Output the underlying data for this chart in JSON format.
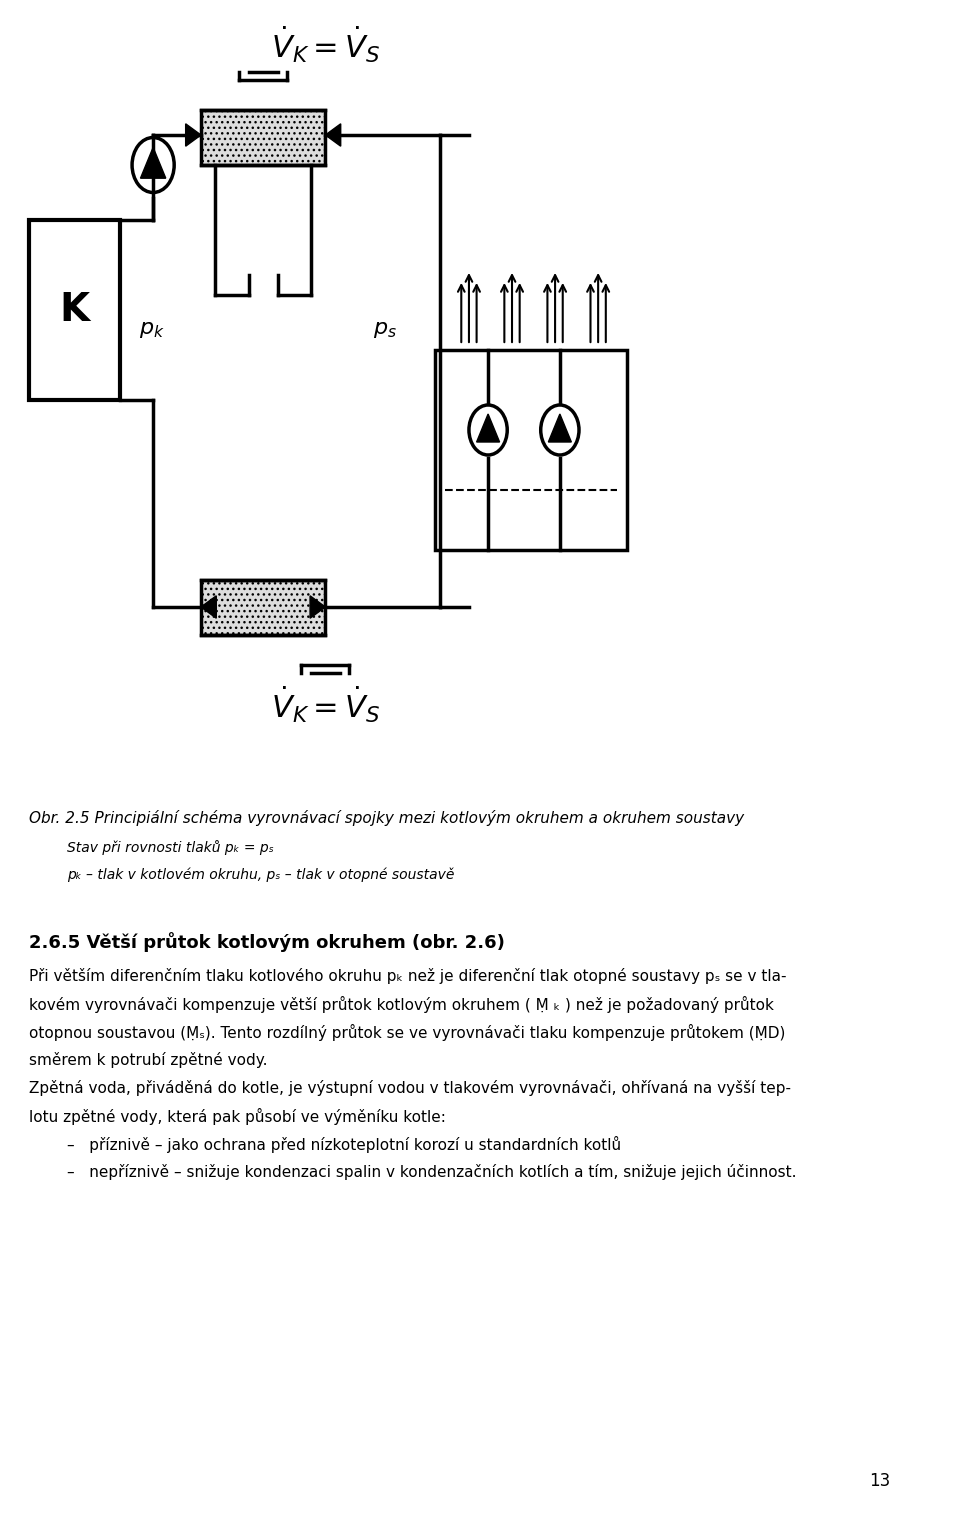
{
  "bg_color": "#ffffff",
  "page_number": "13",
  "caption_title": "Obr. 2.5 Principiální schéma vyrovnávací spojky mezi kotlovým okruhem a okruhem soustavy",
  "caption_line1": "Stav při rovnosti tlaků pₖ = pₛ",
  "caption_line2": "pₖ – tlak v kotlovém okruhu, pₛ – tlak v otopné soustavě",
  "section_title": "2.6.5 Větší průtok kotlovým okruhem (obr. 2.6)",
  "body_text": [
    "Při větším diferenčním tlaku kotlového okruhu pₖ než je diferenční tlak otopné soustavy pₛ se v tla-",
    "kovém vyrovnávači kompenzuje větší průtok kotlovým okruhem ( Ṃ ₖ ) než je požadovaný průtok",
    "otopnou soustavou (Ṃₛ). Tento rozdílný průtok se ve vyrovnávači tlaku kompenzuje průtokem (ṂD)",
    "směrem k potrubí zpětné vody.",
    "Zpětná voda, přiváděná do kotle, je výstupní vodou v tlakovém vyrovnávači, ohřívaná na vyšší tep-",
    "lotu zpětné vody, která pak působí ve výměníku kotle:",
    "–   příznivě – jako ochrana před nízkoteplotní korozí u standardních kotlů",
    "–   nepříznivě – snižuje kondenzaci spalin v kondenzačních kotlích a tím, snižuje jejich účinnost."
  ]
}
